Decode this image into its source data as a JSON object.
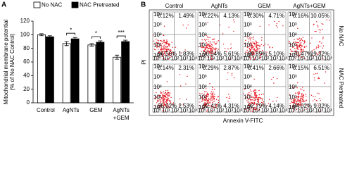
{
  "chart_data": [
    {
      "type": "bar",
      "panel_label": "A",
      "ylabel": [
        "Mitochondrial membrane potential",
        "(% of No NAC Control)"
      ],
      "categories": [
        [
          "Control"
        ],
        [
          "AgNTs"
        ],
        [
          "GEM"
        ],
        [
          "AgNTs",
          "+GEM"
        ]
      ],
      "series": [
        {
          "name": "No NAC",
          "color": "#ffffff",
          "values": [
            100,
            87,
            85,
            67
          ],
          "errors": [
            1.5,
            3,
            2,
            3
          ]
        },
        {
          "name": "NAC Pretreated",
          "color": "#000000",
          "values": [
            97,
            94,
            89,
            90
          ],
          "errors": [
            1.5,
            2,
            2,
            2
          ]
        }
      ],
      "significance": [
        null,
        "*",
        "*",
        "***"
      ],
      "ylim": [
        0,
        120
      ],
      "yticks": [
        0,
        20,
        40,
        60,
        80,
        100,
        120
      ]
    },
    {
      "type": "flow",
      "panel_label": "B",
      "columns": [
        "Control",
        "AgNTs",
        "GEM",
        "AgNTs+GEM"
      ],
      "rows": [
        "No NAC",
        "NAC Pretreated"
      ],
      "ylabel": "PI",
      "xlabel": "Annexin V-FITC",
      "axis_ticks": [
        "10⁰",
        "10¹",
        "10²",
        "10³",
        "10⁴"
      ],
      "color": "#e3121c",
      "plots": [
        [
          {
            "values": [
              0.12,
              1.49,
              96.56,
              1.83
            ],
            "value_labels": [
              "0.12%",
              "1.49%",
              "96.56%",
              "1.83%"
            ]
          },
          {
            "values": [
              0.22,
              4.13,
              90.04,
              5.61
            ],
            "value_labels": [
              "0.22%",
              "4.13%",
              "90.04%",
              "5.61%"
            ]
          },
          {
            "values": [
              0.3,
              4.71,
              89.89,
              5.1
            ],
            "value_labels": [
              "0.30%",
              "4.71%",
              "89.89%",
              "5.10%"
            ]
          },
          {
            "values": [
              0.16,
              10.05,
              70.47,
              19.32
            ],
            "value_labels": [
              "0.16%",
              "10.05%",
              "70.47%",
              "19.32%"
            ]
          }
        ],
        [
          {
            "values": [
              0.14,
              2.31,
              95.02,
              2.53
            ],
            "value_labels": [
              "0.14%",
              "2.31%",
              "95.02%",
              "2.53%"
            ]
          },
          {
            "values": [
              0.29,
              2.87,
              92.41,
              4.31
            ],
            "value_labels": [
              "0.29%",
              "2.87%",
              "92.41%",
              "4.31%"
            ]
          },
          {
            "values": [
              0.41,
              2.66,
              92.79,
              4.14
            ],
            "value_labels": [
              "0.41%",
              "2.66%",
              "92.79%",
              "4.14%"
            ]
          },
          {
            "values": [
              0.15,
              6.51,
              84.02,
              9.32
            ],
            "value_labels": [
              "0.15%",
              "6.51%",
              "84.02%",
              "9.32%"
            ]
          }
        ]
      ]
    }
  ]
}
